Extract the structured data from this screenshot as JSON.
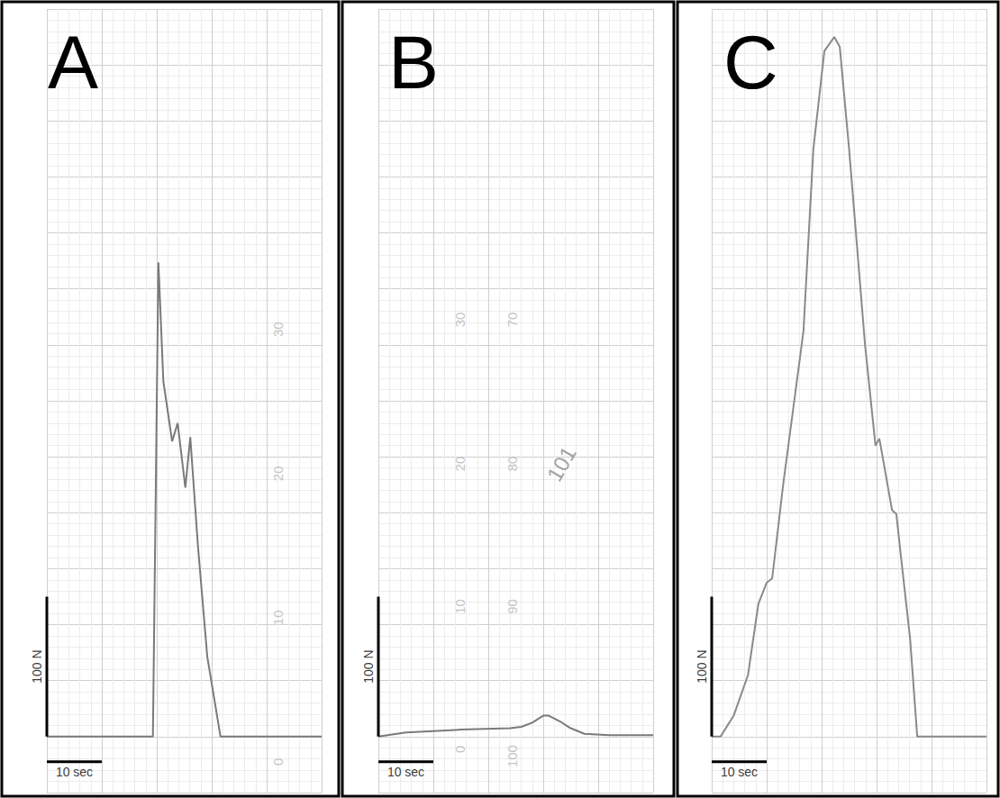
{
  "chart_data": [
    {
      "type": "line",
      "title": "A",
      "color": "#7a7a7a",
      "grid": true,
      "tick_labels": false,
      "xlim": [
        0,
        50
      ],
      "xticks": [
        0,
        10,
        20,
        30,
        40,
        50
      ],
      "ylim": [
        -40,
        520
      ],
      "yticks": [
        -40,
        0,
        40,
        80,
        120,
        160,
        200,
        240,
        280,
        320,
        360,
        400,
        440,
        480,
        520
      ],
      "x": [
        0,
        19.3,
        20.3,
        21.2,
        22.8,
        23.8,
        25.2,
        26.1,
        27.5,
        29.2,
        31.6,
        50
      ],
      "values": [
        0,
        0,
        339,
        254,
        211,
        224,
        178,
        214,
        136,
        57,
        0,
        0
      ],
      "scale_bar": {
        "force": 100,
        "force_label": "100 N",
        "time": 10,
        "time_label": "10 sec"
      },
      "annotations": [
        {
          "text": "30",
          "x": 42,
          "y": 291
        },
        {
          "text": "20",
          "x": 42,
          "y": 188
        },
        {
          "text": "10",
          "x": 42,
          "y": 85
        },
        {
          "text": "0",
          "x": 42,
          "y": -18
        }
      ]
    },
    {
      "type": "line",
      "title": "B",
      "color": "#7a7a7a",
      "grid": true,
      "tick_labels": false,
      "xlim": [
        0,
        50
      ],
      "xticks": [
        0,
        10,
        20,
        30,
        40,
        50
      ],
      "ylim": [
        -40,
        520
      ],
      "yticks": [
        -40,
        0,
        40,
        80,
        120,
        160,
        200,
        240,
        280,
        320,
        360,
        400,
        440,
        480,
        520
      ],
      "x": [
        0,
        5,
        15,
        24,
        26,
        28,
        30,
        31,
        33,
        35,
        37.5,
        42,
        50
      ],
      "values": [
        0,
        3,
        5,
        6,
        7,
        10,
        15,
        15,
        11,
        6,
        2,
        1,
        1
      ],
      "scale_bar": {
        "force": 100,
        "force_label": "100 N",
        "time": 10,
        "time_label": "10 sec"
      },
      "annotations": [
        {
          "text": "30",
          "x": 14.8,
          "y": 298
        },
        {
          "text": "70",
          "x": 24.3,
          "y": 298
        },
        {
          "text": "20",
          "x": 14.8,
          "y": 195
        },
        {
          "text": "80",
          "x": 24.3,
          "y": 195
        },
        {
          "text": "10",
          "x": 14.8,
          "y": 93
        },
        {
          "text": "90",
          "x": 24.3,
          "y": 93
        },
        {
          "text": "0",
          "x": 14.8,
          "y": -9
        },
        {
          "text": "100",
          "x": 24.3,
          "y": -14
        }
      ],
      "note": {
        "text": "101",
        "x": 33.3,
        "y": 195
      }
    },
    {
      "type": "line",
      "title": "C",
      "color": "#8a8a8a",
      "grid": true,
      "tick_labels": false,
      "xlim": [
        0,
        50
      ],
      "xticks": [
        0,
        10,
        20,
        30,
        40,
        50
      ],
      "ylim": [
        -40,
        520
      ],
      "yticks": [
        -40,
        0,
        40,
        80,
        120,
        160,
        200,
        240,
        280,
        320,
        360,
        400,
        440,
        480,
        520
      ],
      "x": [
        0,
        1.6,
        4,
        6.6,
        8.5,
        10,
        11,
        13,
        16.2,
        16.7,
        18.5,
        20.5,
        22.3,
        23.3,
        25,
        27.9,
        29.8,
        30.5,
        31.1,
        32.8,
        33.6,
        34.4,
        36.1,
        37.4,
        50
      ],
      "values": [
        0,
        0,
        15,
        44,
        95,
        110,
        113,
        180,
        275,
        290,
        420,
        490,
        500,
        493,
        420,
        280,
        208,
        213,
        200,
        162,
        159,
        130,
        70,
        0,
        0
      ],
      "scale_bar": {
        "force": 100,
        "force_label": "100 N",
        "time": 10,
        "time_label": "10 sec"
      }
    }
  ]
}
